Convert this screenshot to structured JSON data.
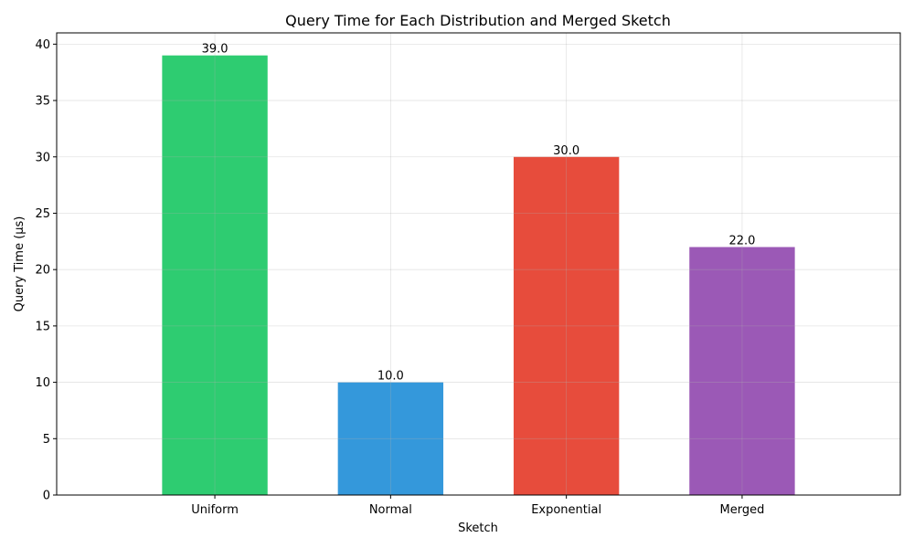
{
  "chart_data": {
    "type": "bar",
    "title": "Query Time for Each Distribution and Merged Sketch",
    "xlabel": "Sketch",
    "ylabel": "Query Time (µs)",
    "categories": [
      "Uniform",
      "Normal",
      "Exponential",
      "Merged"
    ],
    "values": [
      39.0,
      10.0,
      30.0,
      22.0
    ],
    "data_labels": [
      "39.0",
      "10.0",
      "30.0",
      "22.0"
    ],
    "colors": [
      "#2ecc71",
      "#3498db",
      "#e74c3c",
      "#9b59b6"
    ],
    "ylim": [
      0,
      41
    ],
    "yticks": [
      0,
      5,
      10,
      15,
      20,
      25,
      30,
      35,
      40
    ],
    "grid": true,
    "legend": "none"
  }
}
